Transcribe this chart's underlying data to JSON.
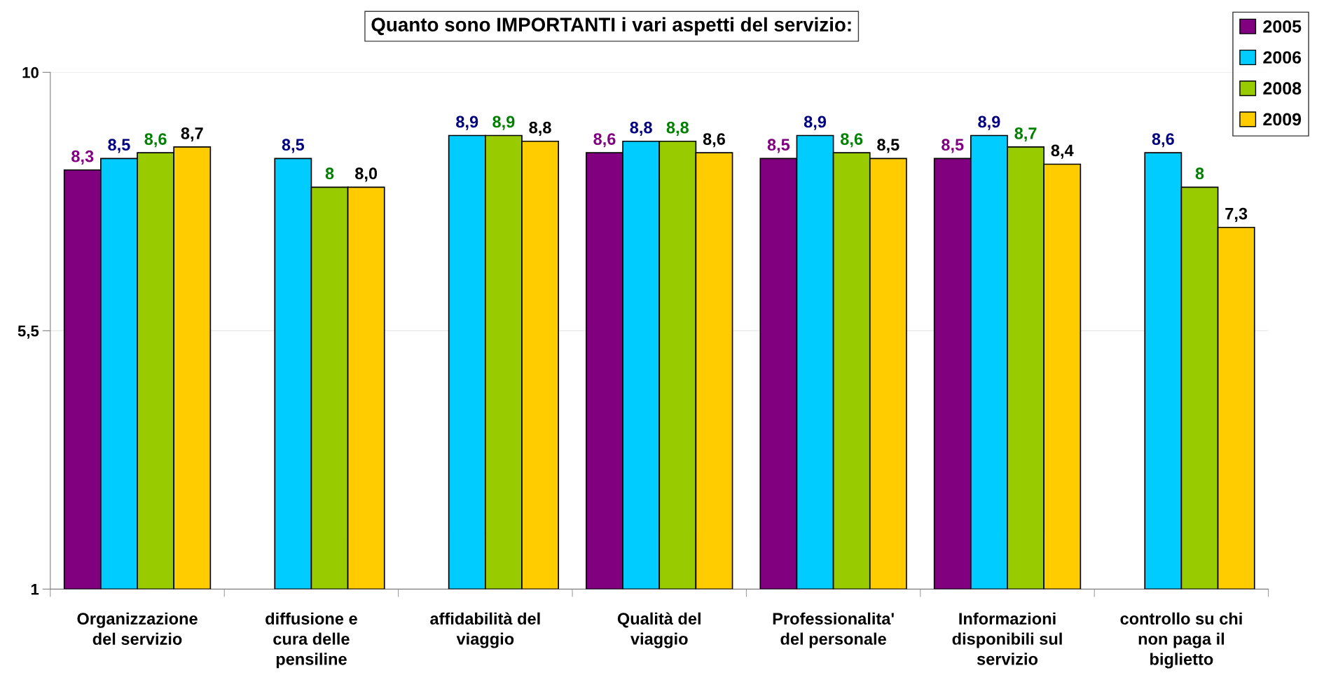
{
  "chart_data": {
    "type": "bar",
    "title": "Quanto sono IMPORTANTI i vari aspetti del servizio:",
    "categories": [
      "Organizzazione\ndel servizio",
      "diffusione e\ncura delle\npensiline",
      "affidabilità del\nviaggio",
      "Qualità del\nviaggio",
      "Professionalita'\ndel personale",
      "Informazioni\ndisponibili sul\nservizio",
      "controllo su chi\nnon paga il\nbiglietto"
    ],
    "series": [
      {
        "name": "2005",
        "color": "#800080",
        "values": [
          8.3,
          null,
          null,
          8.6,
          8.5,
          8.5,
          null
        ],
        "value_labels": [
          "8,3",
          null,
          null,
          "8,6",
          "8,5",
          "8,5",
          null
        ]
      },
      {
        "name": "2006",
        "color": "#00ccff",
        "values": [
          8.5,
          8.5,
          8.9,
          8.8,
          8.9,
          8.9,
          8.6
        ],
        "value_labels": [
          "8,5",
          "8,5",
          "8,9",
          "8,8",
          "8,9",
          "8,9",
          "8,6"
        ]
      },
      {
        "name": "2008",
        "color": "#99cc00",
        "values": [
          8.6,
          8,
          8.9,
          8.8,
          8.6,
          8.7,
          8
        ],
        "value_labels": [
          "8,6",
          "8",
          "8,9",
          "8,8",
          "8,6",
          "8,7",
          "8"
        ]
      },
      {
        "name": "2009",
        "color": "#ffcc00",
        "values": [
          8.7,
          8.0,
          8.8,
          8.6,
          8.5,
          8.4,
          7.3
        ],
        "value_labels": [
          "8,7",
          "8,0",
          "8,8",
          "8,6",
          "8,5",
          "8,4",
          "7,3"
        ]
      }
    ],
    "ylim": [
      1,
      10
    ],
    "yticks": [
      1,
      {
        "value": 5.5,
        "label": "5,5"
      },
      10
    ],
    "grid": "y",
    "legend": "top right"
  }
}
